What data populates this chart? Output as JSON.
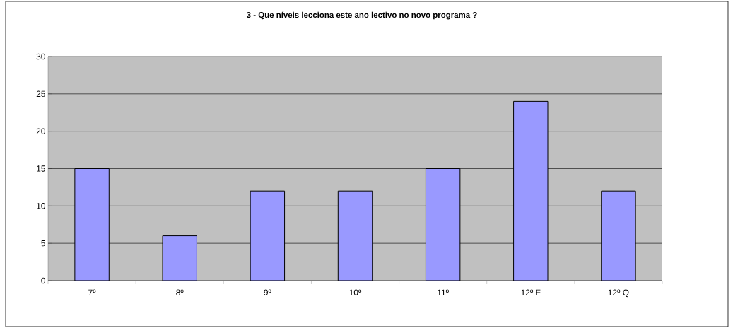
{
  "chart_data": {
    "type": "bar",
    "title": "3 - Que níveis lecciona este ano lectivo no novo programa ?",
    "categories": [
      "7º",
      "8º",
      "9º",
      "10º",
      "11º",
      "12º F",
      "12º Q"
    ],
    "values": [
      15,
      6,
      12,
      12,
      15,
      24,
      12
    ],
    "color": "#9999ff",
    "ylim": [
      0,
      30
    ],
    "yticks": [
      0,
      5,
      10,
      15,
      20,
      25,
      30
    ],
    "grid": "y"
  }
}
